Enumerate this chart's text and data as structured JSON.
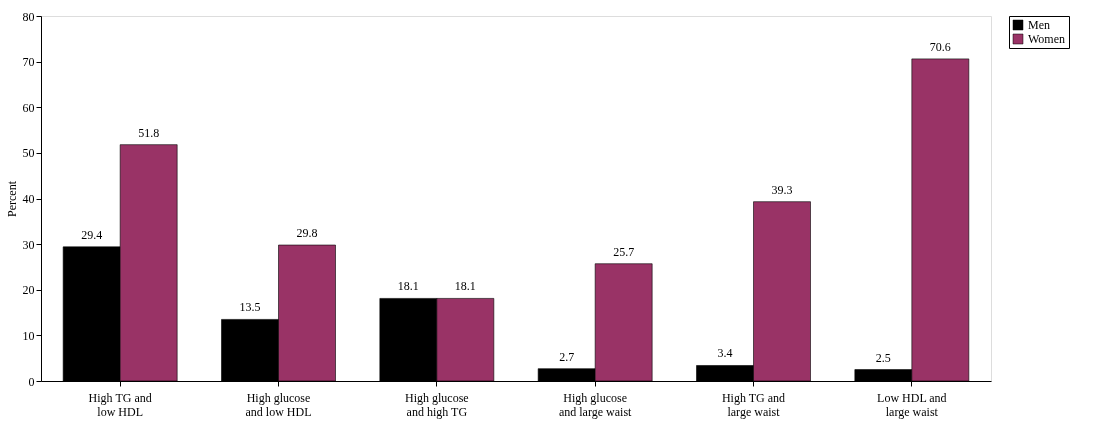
{
  "chart_data": {
    "type": "bar",
    "ylabel": "Percent",
    "categories": [
      "High TG and low HDL",
      "High glucose and low HDL",
      "High glucose and high TG",
      "High glucose and large waist",
      "High TG and large waist",
      "Low HDL and large waist"
    ],
    "series": [
      {
        "name": "Men",
        "color": "#000000",
        "values": [
          29.4,
          13.5,
          18.1,
          2.7,
          3.4,
          2.5
        ]
      },
      {
        "name": "Women",
        "color": "#993366",
        "values": [
          51.8,
          29.8,
          18.1,
          25.7,
          39.3,
          70.6
        ]
      }
    ],
    "ylim": [
      0,
      80
    ],
    "yticks": [
      0,
      10,
      20,
      30,
      40,
      50,
      60,
      70,
      80
    ],
    "grid": false,
    "legend": "right",
    "data_labels": true
  }
}
